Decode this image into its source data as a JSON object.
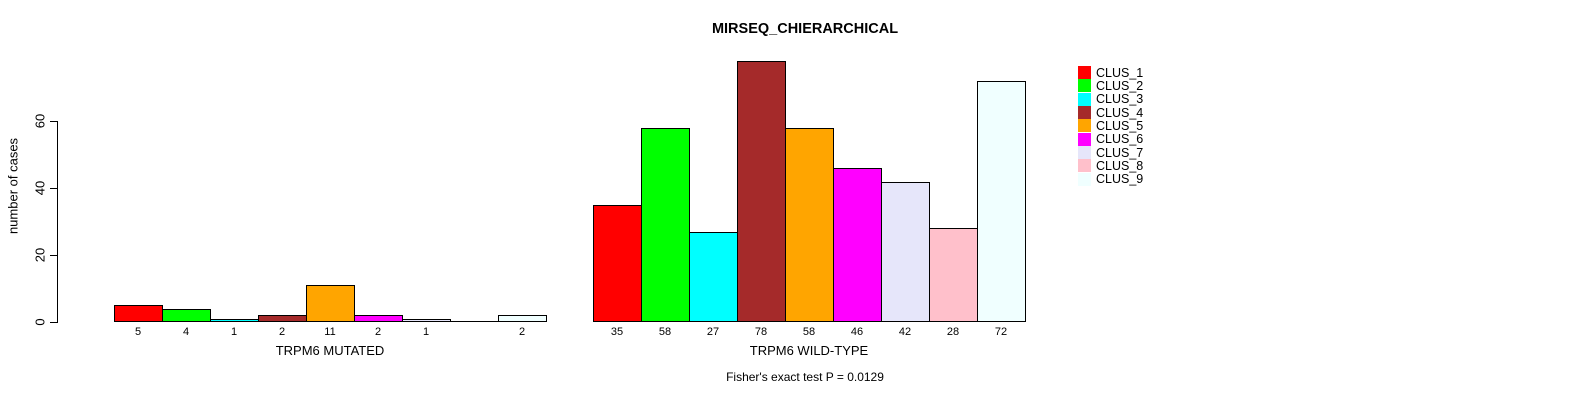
{
  "chart_data": {
    "type": "bar",
    "title": "MIRSEQ_CHIERARCHICAL",
    "ylabel": "number of cases",
    "yticks": [
      0,
      20,
      40,
      60
    ],
    "ylim": [
      0,
      78
    ],
    "grid": false,
    "legend_position": "right",
    "categories": [
      "CLUS_1",
      "CLUS_2",
      "CLUS_3",
      "CLUS_4",
      "CLUS_5",
      "CLUS_6",
      "CLUS_7",
      "CLUS_8",
      "CLUS_9"
    ],
    "colors": [
      "#FF0000",
      "#00FF00",
      "#00FFFF",
      "#A52A2A",
      "#FFA500",
      "#FF00FF",
      "#E6E6FA",
      "#FFC0CB",
      "#F0FFFF"
    ],
    "bar_border_color": "#000000",
    "panels": [
      {
        "xlabel": "TRPM6 MUTATED",
        "values": [
          5,
          4,
          1,
          2,
          11,
          2,
          1,
          0,
          2
        ],
        "bar_labels": [
          "5",
          "4",
          "1",
          "2",
          "11",
          "2",
          "1",
          "",
          "2"
        ]
      },
      {
        "xlabel": "TRPM6 WILD-TYPE",
        "values": [
          35,
          58,
          27,
          78,
          58,
          46,
          42,
          28,
          72
        ],
        "bar_labels": [
          "35",
          "58",
          "27",
          "78",
          "58",
          "46",
          "42",
          "28",
          "72"
        ]
      }
    ],
    "footnote": "Fisher's exact test P = 0.0129"
  }
}
